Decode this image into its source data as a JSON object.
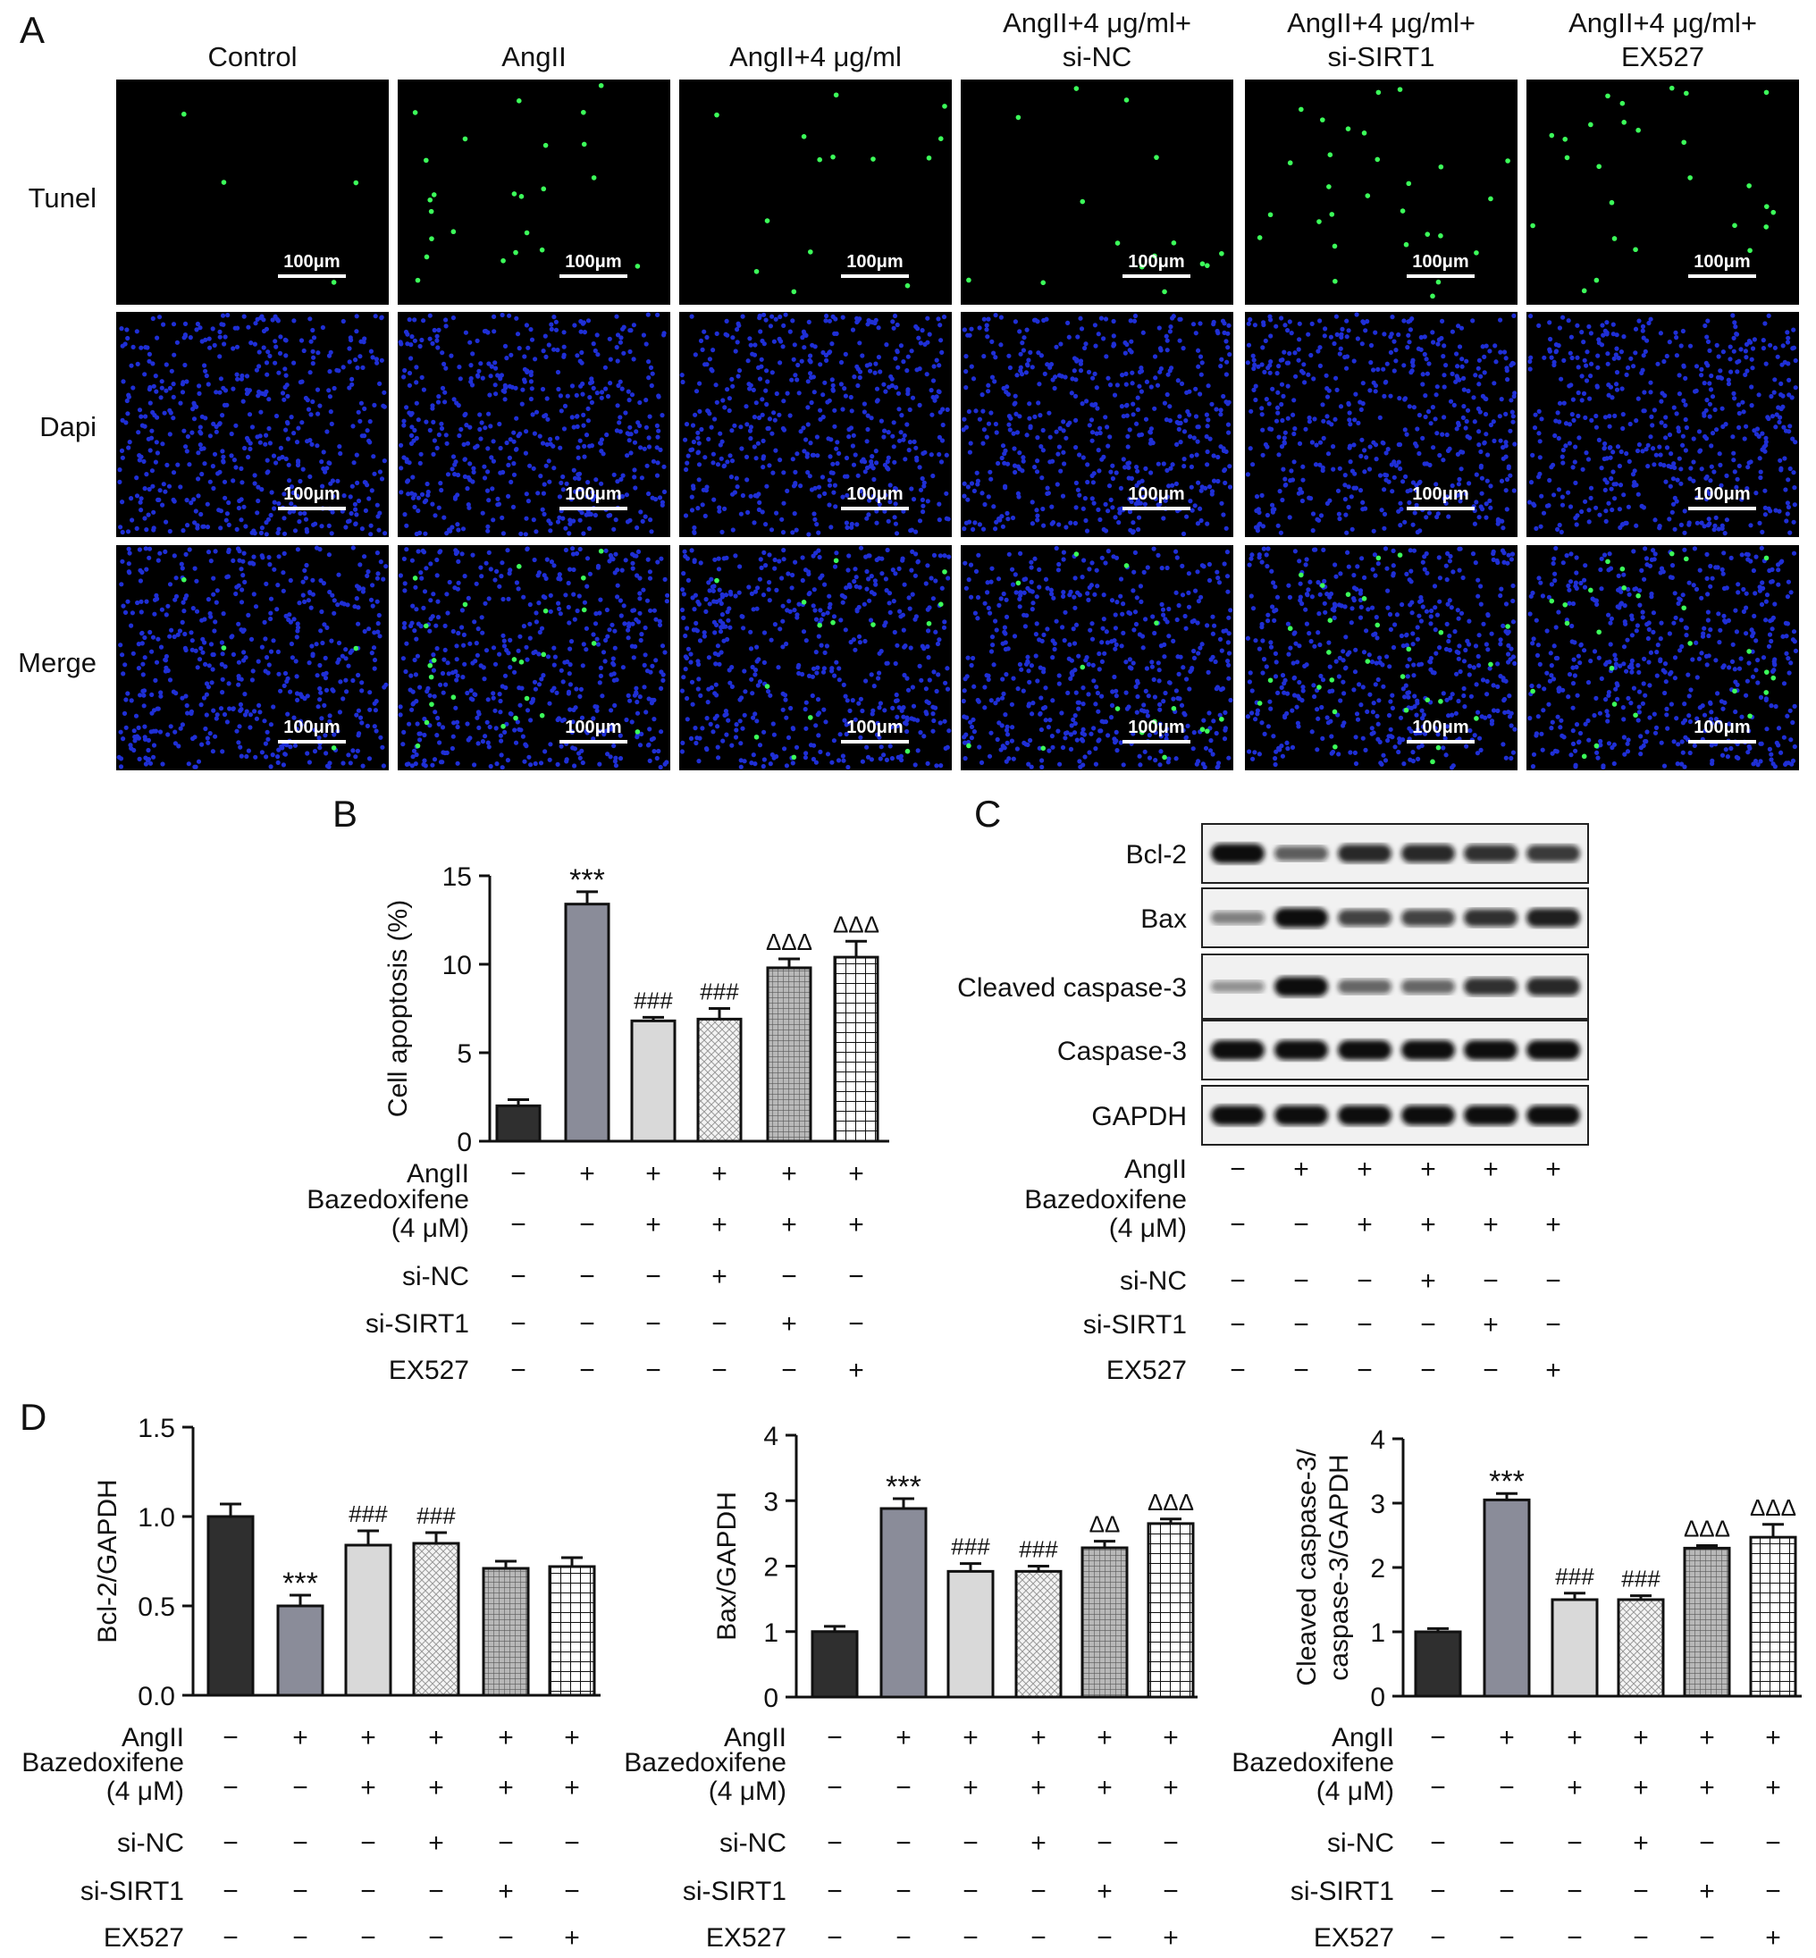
{
  "panel_letters": {
    "a": "A",
    "b": "B",
    "c": "C",
    "d": "D"
  },
  "micrographs": {
    "columns": [
      "Control",
      "AngII",
      "AngII+4 μg/ml",
      "AngII+4 μg/ml+\nsi-NC",
      "AngII+4 μg/ml+\nsi-SIRT1",
      "AngII+4 μg/ml+\nEX527"
    ],
    "rows": [
      "Tunel",
      "Dapi",
      "Merge"
    ],
    "scale_bar_label": "100μm",
    "apoptotic_cells_per_field": [
      4,
      24,
      14,
      15,
      28,
      26
    ],
    "colors": {
      "background": "#000000",
      "nucleus": "#1f2fd6",
      "tunel": "#3cff5a"
    }
  },
  "treatment_rows": [
    {
      "label": "AngII",
      "marks": [
        "−",
        "+",
        "+",
        "+",
        "+",
        "+"
      ]
    },
    {
      "label": "Bazedoxifene\n(4 μM)",
      "marks": [
        "−",
        "−",
        "+",
        "+",
        "+",
        "+"
      ]
    },
    {
      "label": "si-NC",
      "marks": [
        "−",
        "−",
        "−",
        "+",
        "−",
        "−"
      ]
    },
    {
      "label": "si-SIRT1",
      "marks": [
        "−",
        "−",
        "−",
        "−",
        "+",
        "−"
      ]
    },
    {
      "label": "EX527",
      "marks": [
        "−",
        "−",
        "−",
        "−",
        "−",
        "+"
      ]
    }
  ],
  "blot": {
    "proteins": [
      "Bcl-2",
      "Bax",
      "Cleaved caspase-3",
      "Caspase-3",
      "GAPDH"
    ],
    "band_intensity": [
      [
        1.0,
        0.55,
        0.85,
        0.85,
        0.8,
        0.75
      ],
      [
        0.35,
        1.0,
        0.7,
        0.7,
        0.8,
        0.9
      ],
      [
        0.25,
        1.0,
        0.5,
        0.5,
        0.8,
        0.85
      ],
      [
        1.0,
        1.0,
        1.0,
        1.0,
        1.0,
        1.0
      ],
      [
        1.0,
        1.0,
        1.0,
        1.0,
        1.0,
        1.0
      ]
    ]
  },
  "bar_styles": [
    {
      "fill": "#2f2f2f",
      "pattern": "solid"
    },
    {
      "fill": "#8a8c99",
      "pattern": "solid"
    },
    {
      "fill": "#d9d9d9",
      "pattern": "solid"
    },
    {
      "fill": "#f2f2f2",
      "pattern": "dots"
    },
    {
      "fill": "#a9a9a9",
      "pattern": "finegrid"
    },
    {
      "fill": "#ffffff",
      "pattern": "grid"
    }
  ],
  "chart_data": [
    {
      "id": "B",
      "type": "bar",
      "ylabel": "Cell apoptosis (%)",
      "ylim": [
        0,
        15
      ],
      "yticks": [
        0,
        5,
        10,
        15
      ],
      "values": [
        2.0,
        13.4,
        6.8,
        6.9,
        9.8,
        10.4
      ],
      "errors": [
        0.35,
        0.7,
        0.2,
        0.6,
        0.5,
        0.9
      ],
      "annotations": [
        "",
        "***",
        "###",
        "###",
        "ΔΔΔ",
        "ΔΔΔ"
      ]
    },
    {
      "id": "D1",
      "type": "bar",
      "ylabel": "Bcl-2/GAPDH",
      "ylim": [
        0,
        1.5
      ],
      "yticks": [
        "0.0",
        "0.5",
        "1.0",
        "1.5"
      ],
      "values": [
        1.0,
        0.5,
        0.84,
        0.85,
        0.71,
        0.72
      ],
      "errors": [
        0.07,
        0.06,
        0.08,
        0.06,
        0.04,
        0.05
      ],
      "annotations": [
        "",
        "***",
        "###",
        "###",
        "",
        ""
      ]
    },
    {
      "id": "D2",
      "type": "bar",
      "ylabel": "Bax/GAPDH",
      "ylim": [
        0,
        4
      ],
      "yticks": [
        0,
        1,
        2,
        3,
        4
      ],
      "values": [
        1.0,
        2.88,
        1.92,
        1.92,
        2.28,
        2.65
      ],
      "errors": [
        0.08,
        0.15,
        0.12,
        0.08,
        0.1,
        0.07
      ],
      "annotations": [
        "",
        "***",
        "###",
        "###",
        "ΔΔ",
        "ΔΔΔ"
      ]
    },
    {
      "id": "D3",
      "type": "bar",
      "ylabel": "Cleaved caspase-3/\ncaspase-3/GAPDH",
      "ylim": [
        0,
        4
      ],
      "yticks": [
        0,
        1,
        2,
        3,
        4
      ],
      "values": [
        1.0,
        3.05,
        1.5,
        1.5,
        2.3,
        2.47
      ],
      "errors": [
        0.05,
        0.1,
        0.1,
        0.06,
        0.04,
        0.2
      ],
      "annotations": [
        "",
        "***",
        "###",
        "###",
        "ΔΔΔ",
        "ΔΔΔ"
      ]
    }
  ]
}
